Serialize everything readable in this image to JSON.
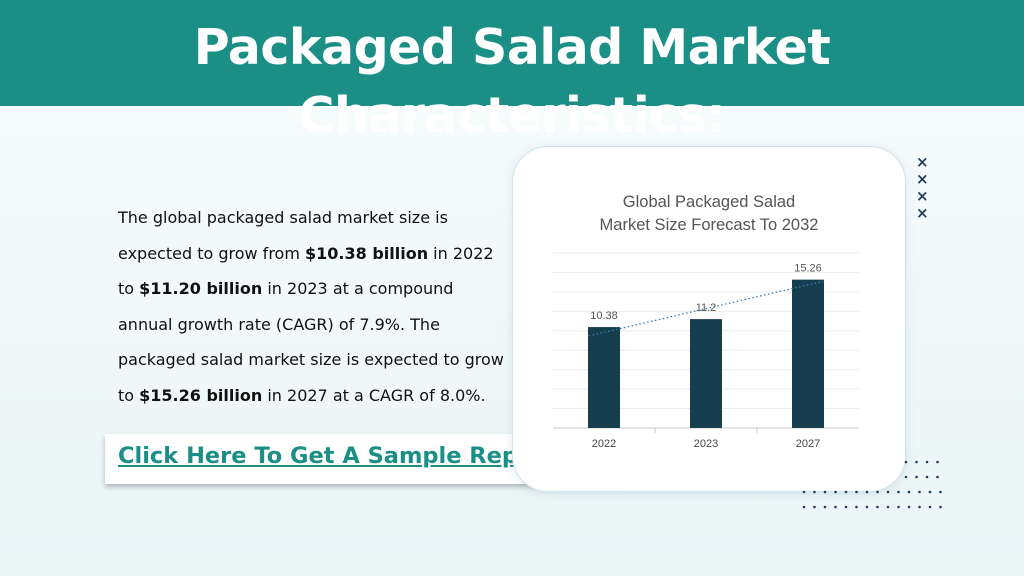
{
  "header": {
    "title": "Packaged Salad Market Characteristics:",
    "bg_color": "#1b8f86"
  },
  "description": {
    "t1": "The global packaged salad market size is expected to grow from ",
    "b1": "$10.38 billion",
    "t2": " in 2022 to ",
    "b2": "$11.20 billion",
    "t3": " in 2023 at a compound annual growth rate (CAGR) of 7.9%. The packaged salad market size is expected to grow to ",
    "b3": "$15.26 billion",
    "t4": " in 2027 at a CAGR of 8.0%."
  },
  "cta": {
    "label": "Click Here To Get A Sample Report"
  },
  "decor": {
    "icon": "cross-pattern",
    "text": "×\n×\n×\n×"
  },
  "chart_data": {
    "type": "bar",
    "title_line1": "Global Packaged Salad",
    "title_line2": "Market Size Forecast To 2032",
    "categories": [
      "2022",
      "2023",
      "2027"
    ],
    "values": [
      10.38,
      11.2,
      15.26
    ],
    "data_labels": [
      "10.38",
      "11.2",
      "15.26"
    ],
    "ylim": [
      0,
      18
    ],
    "grid": true,
    "trendline": "linear",
    "bar_color": "#163e4f",
    "trend_color": "#3a78b5"
  }
}
